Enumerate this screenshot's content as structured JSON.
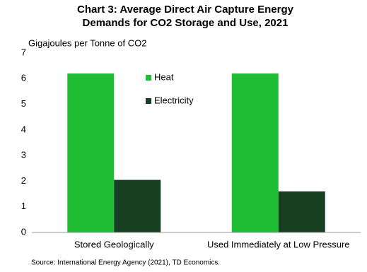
{
  "chart_data": {
    "type": "bar",
    "title": [
      "Chart 3: Average Direct Air Capture Energy",
      "Demands for CO2 Storage and Use, 2021"
    ],
    "y_label": "Gigajoules per Tonne of CO2",
    "categories": [
      "Stored Geologically",
      "Used Immediately at Low Pressure"
    ],
    "series": [
      {
        "name": "Heat",
        "color": "#1fbe34",
        "values": [
          6.2,
          6.2
        ]
      },
      {
        "name": "Electricity",
        "color": "#173f22",
        "values": [
          2.05,
          1.6
        ]
      }
    ],
    "ylim": [
      0,
      7
    ],
    "yticks": [
      0,
      1,
      2,
      3,
      4,
      5,
      6,
      7
    ],
    "grid": false,
    "source": "Source: International Energy Agency (2021), TD Economics."
  }
}
